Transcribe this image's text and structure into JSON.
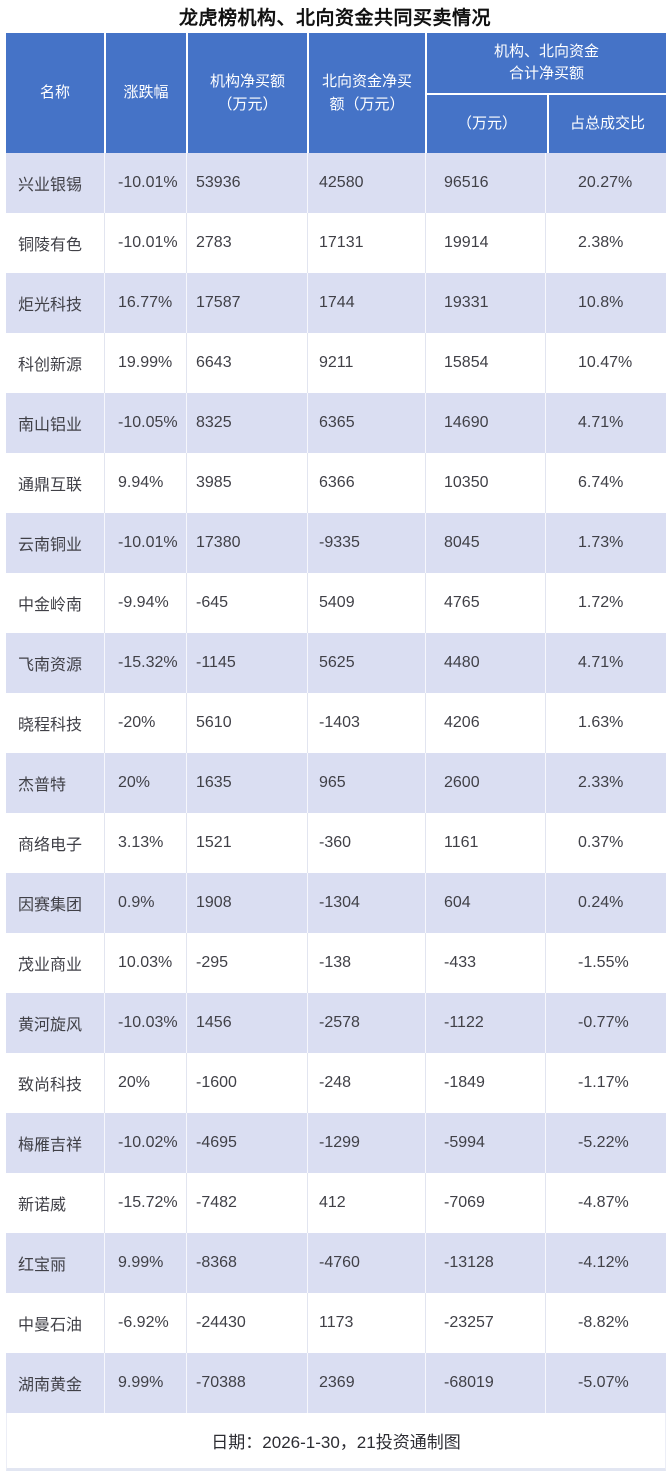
{
  "title": "龙虎榜机构、北向资金共同买卖情况",
  "header": {
    "name": "名称",
    "change": "涨跌幅",
    "inst_line1": "机构净买额",
    "inst_line2": "（万元）",
    "north_line1": "北向资金净买",
    "north_line2": "额（万元）",
    "group_line1": "机构、北向资金",
    "group_line2": "合计净买额",
    "sub_total": "（万元）",
    "sub_ratio": "占总成交比"
  },
  "footer": {
    "text": "日期：2026-1-30，21投资通制图"
  },
  "colors": {
    "header_bg": "#4573C7",
    "header_text": "#FFFFFF",
    "row_alt_bg": "#DADEF2",
    "row_bg": "#FFFFFF",
    "body_text": "#404047"
  },
  "chart_data": {
    "type": "table",
    "title": "龙虎榜机构、北向资金共同买卖情况",
    "columns": [
      "名称",
      "涨跌幅",
      "机构净买额（万元）",
      "北向资金净买额（万元）",
      "机构、北向资金合计净买额（万元）",
      "占总成交比"
    ],
    "rows": [
      [
        "兴业银锡",
        "-10.01%",
        53936,
        42580,
        96516,
        "20.27%"
      ],
      [
        "铜陵有色",
        "-10.01%",
        2783,
        17131,
        19914,
        "2.38%"
      ],
      [
        "炬光科技",
        "16.77%",
        17587,
        1744,
        19331,
        "10.8%"
      ],
      [
        "科创新源",
        "19.99%",
        6643,
        9211,
        15854,
        "10.47%"
      ],
      [
        "南山铝业",
        "-10.05%",
        8325,
        6365,
        14690,
        "4.71%"
      ],
      [
        "通鼎互联",
        "9.94%",
        3985,
        6366,
        10350,
        "6.74%"
      ],
      [
        "云南铜业",
        "-10.01%",
        17380,
        -9335,
        8045,
        "1.73%"
      ],
      [
        "中金岭南",
        "-9.94%",
        -645,
        5409,
        4765,
        "1.72%"
      ],
      [
        "飞南资源",
        "-15.32%",
        -1145,
        5625,
        4480,
        "4.71%"
      ],
      [
        "晓程科技",
        "-20%",
        5610,
        -1403,
        4206,
        "1.63%"
      ],
      [
        "杰普特",
        "20%",
        1635,
        965,
        2600,
        "2.33%"
      ],
      [
        "商络电子",
        "3.13%",
        1521,
        -360,
        1161,
        "0.37%"
      ],
      [
        "因赛集团",
        "0.9%",
        1908,
        -1304,
        604,
        "0.24%"
      ],
      [
        "茂业商业",
        "10.03%",
        -295,
        -138,
        -433,
        "-1.55%"
      ],
      [
        "黄河旋风",
        "-10.03%",
        1456,
        -2578,
        -1122,
        "-0.77%"
      ],
      [
        "致尚科技",
        "20%",
        -1600,
        -248,
        -1849,
        "-1.17%"
      ],
      [
        "梅雁吉祥",
        "-10.02%",
        -4695,
        -1299,
        -5994,
        "-5.22%"
      ],
      [
        "新诺威",
        "-15.72%",
        -7482,
        412,
        -7069,
        "-4.87%"
      ],
      [
        "红宝丽",
        "9.99%",
        -8368,
        -4760,
        -13128,
        "-4.12%"
      ],
      [
        "中曼石油",
        "-6.92%",
        -24430,
        1173,
        -23257,
        "-8.82%"
      ],
      [
        "湖南黄金",
        "9.99%",
        -70388,
        2369,
        -68019,
        "-5.07%"
      ]
    ]
  }
}
